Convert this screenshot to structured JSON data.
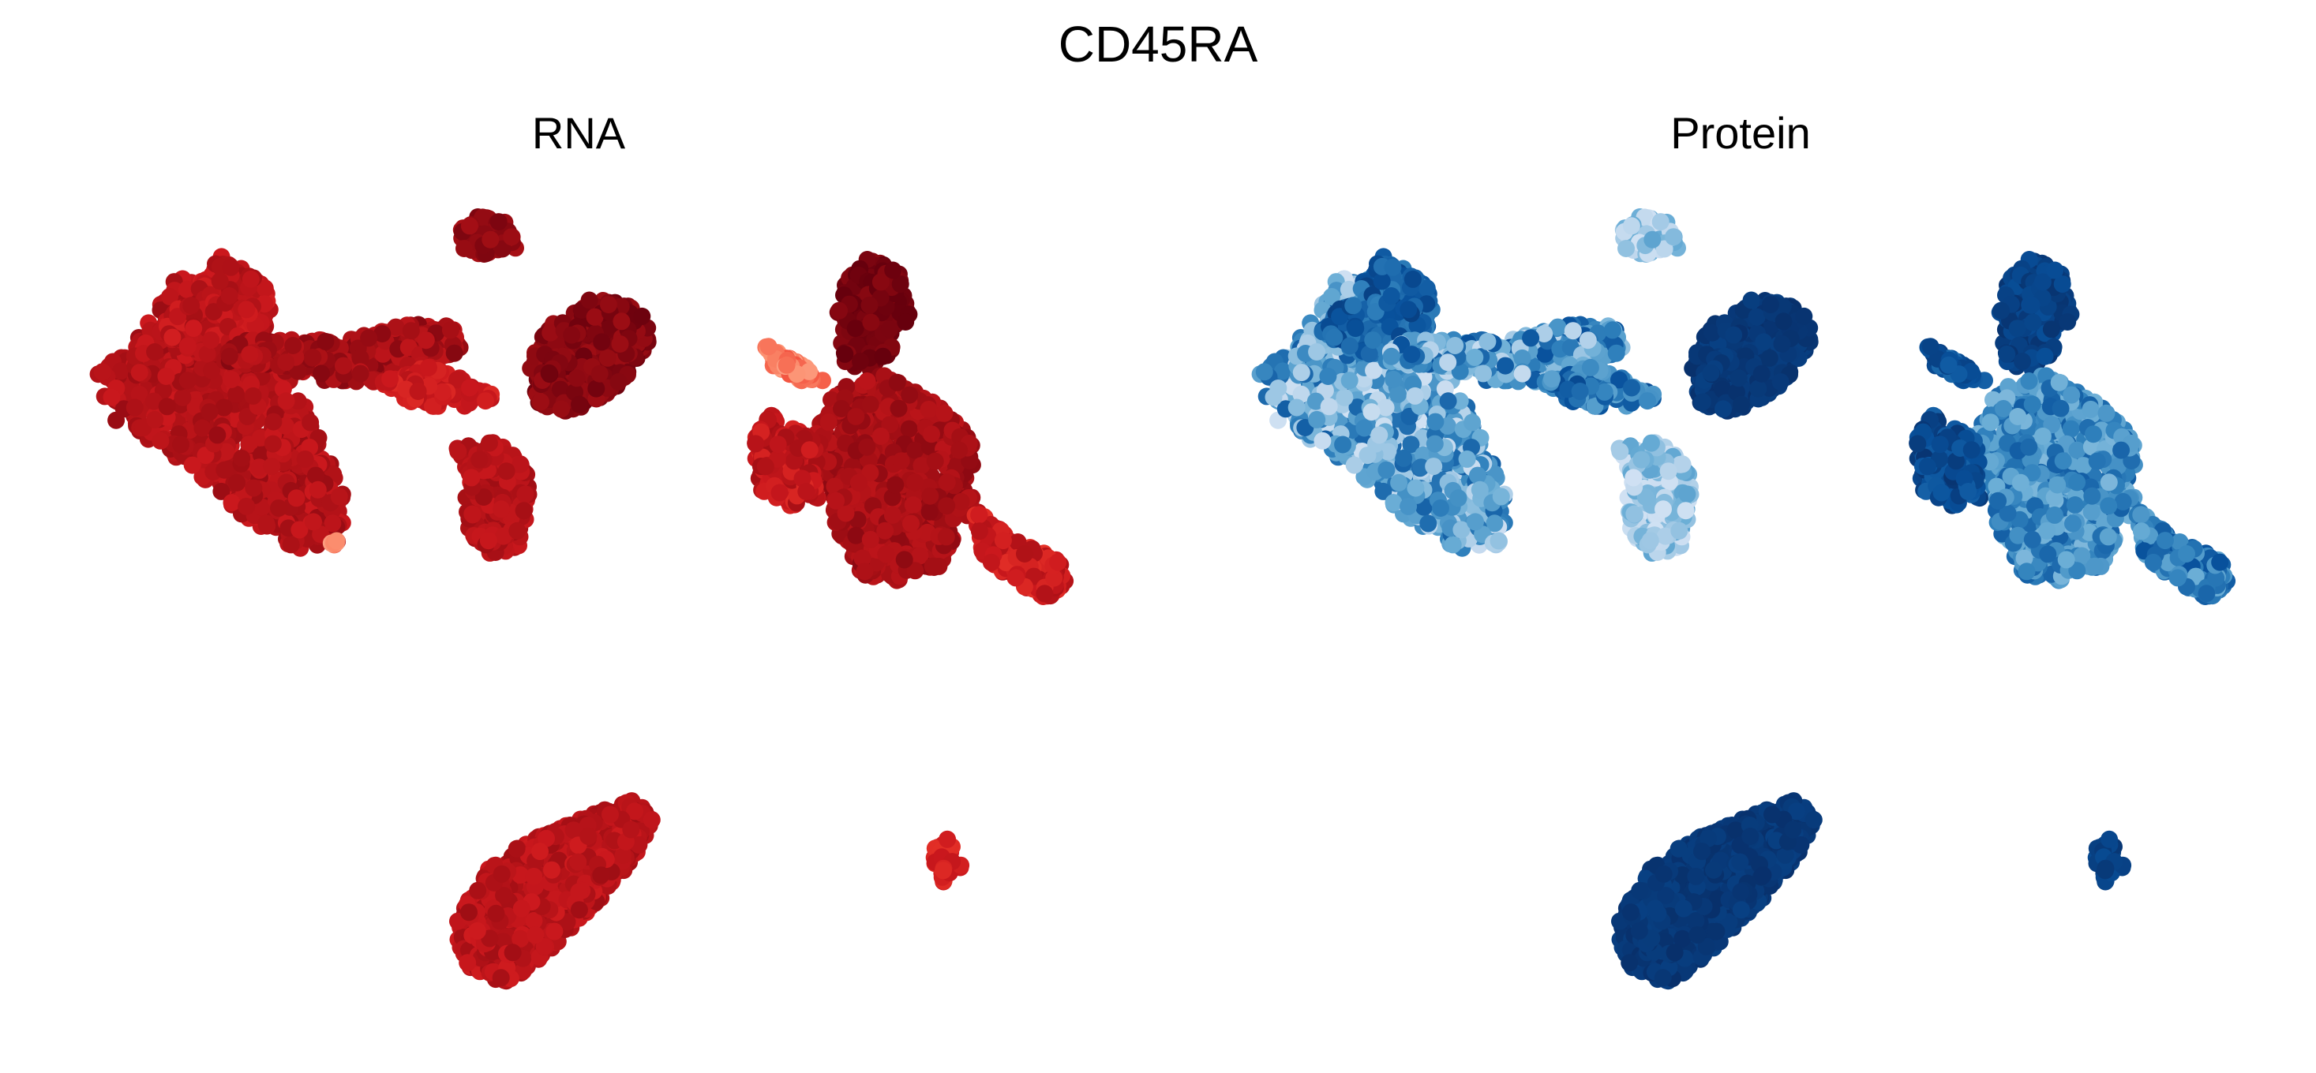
{
  "figure": {
    "title": "CD45RA"
  },
  "chart_data": [
    {
      "type": "scatter",
      "title": "RNA",
      "xlabel": "",
      "ylabel": "",
      "axes_visible": false,
      "grid": false,
      "colormap": "Reds",
      "colormap_stops": [
        "#fee0d2",
        "#fc9272",
        "#ef3b2c",
        "#cb181d",
        "#a50f15",
        "#67000d"
      ],
      "color_by": "CD45RA RNA expression",
      "xlim": [
        0,
        100
      ],
      "ylim": [
        0,
        100
      ],
      "clusters": [
        {
          "id": "c1",
          "shape": [
            [
              3,
              78
            ],
            [
              5,
              72
            ],
            [
              12,
              67
            ],
            [
              17,
              61
            ],
            [
              22,
              57
            ],
            [
              26,
              57
            ],
            [
              27,
              63
            ],
            [
              24,
              71
            ],
            [
              21,
              79
            ],
            [
              17,
              84
            ],
            [
              14,
              88
            ],
            [
              11,
              90
            ],
            [
              9,
              86
            ],
            [
              7,
              82
            ]
          ],
          "level": 0.72,
          "spread": 0.12
        },
        {
          "id": "c2",
          "shape": [
            [
              9,
              83
            ],
            [
              12,
              88
            ],
            [
              15,
              92
            ],
            [
              19,
              89
            ],
            [
              20,
              84
            ],
            [
              17,
              80
            ],
            [
              13,
              80
            ]
          ],
          "level": 0.68,
          "spread": 0.12
        },
        {
          "id": "c3",
          "shape": [
            [
              15,
              79
            ],
            [
              20,
              79
            ],
            [
              25,
              77
            ],
            [
              30,
              77
            ],
            [
              35,
              79
            ],
            [
              38,
              81
            ],
            [
              37,
              84
            ],
            [
              32,
              84
            ],
            [
              27,
              82
            ],
            [
              21,
              82
            ],
            [
              16,
              82
            ]
          ],
          "level": 0.78,
          "spread": 0.12
        },
        {
          "id": "c4",
          "shape": [
            [
              30,
              77
            ],
            [
              35,
              79
            ],
            [
              40,
              76
            ],
            [
              41,
              75
            ],
            [
              38,
              74
            ],
            [
              33,
              74
            ]
          ],
          "level": 0.6,
          "spread": 0.1
        },
        {
          "id": "c5",
          "shape": [
            [
              37,
              95
            ],
            [
              39,
              97
            ],
            [
              42,
              96
            ],
            [
              43,
              93
            ],
            [
              40,
              92
            ],
            [
              38,
              92
            ]
          ],
          "level": 0.85,
          "spread": 0.08
        },
        {
          "id": "c6",
          "shape": [
            [
              44,
              79
            ],
            [
              46,
              84
            ],
            [
              50,
              87
            ],
            [
              54,
              86
            ],
            [
              56,
              83
            ],
            [
              53,
              77
            ],
            [
              49,
              73
            ],
            [
              45,
              74
            ]
          ],
          "level": 0.9,
          "spread": 0.08
        },
        {
          "id": "c7",
          "shape": [
            [
              37,
              69
            ],
            [
              41,
              70
            ],
            [
              44,
              67
            ],
            [
              44,
              62
            ],
            [
              43,
              57
            ],
            [
              40,
              56
            ],
            [
              38,
              60
            ],
            [
              38,
              65
            ]
          ],
          "level": 0.72,
          "spread": 0.1
        },
        {
          "id": "c8",
          "shape": [
            [
              25,
              58
            ],
            [
              26,
              58
            ],
            [
              26,
              57
            ]
          ],
          "level": 0.2,
          "spread": 0.05
        },
        {
          "id": "c9",
          "shape": [
            [
              73,
              84
            ],
            [
              74,
              89
            ],
            [
              76,
              92
            ],
            [
              79,
              90
            ],
            [
              80,
              85
            ],
            [
              78,
              80
            ],
            [
              77,
              78
            ],
            [
              74,
              79
            ]
          ],
          "level": 0.95,
          "spread": 0.06
        },
        {
          "id": "c10",
          "shape": [
            [
              73,
              76
            ],
            [
              78,
              78
            ],
            [
              83,
              74
            ],
            [
              86,
              70
            ],
            [
              86,
              62
            ],
            [
              83,
              55
            ],
            [
              79,
              53
            ],
            [
              75,
              54
            ],
            [
              73,
              60
            ],
            [
              72,
              66
            ],
            [
              71,
              71
            ]
          ],
          "level": 0.78,
          "spread": 0.1
        },
        {
          "id": "c11",
          "shape": [
            [
              65,
              71
            ],
            [
              67,
              73
            ],
            [
              71,
              70
            ],
            [
              72,
              63
            ],
            [
              69,
              62
            ],
            [
              66,
              64
            ]
          ],
          "level": 0.65,
          "spread": 0.15
        },
        {
          "id": "c12",
          "shape": [
            [
              86,
              62
            ],
            [
              90,
              58
            ],
            [
              94,
              56
            ],
            [
              95,
              53
            ],
            [
              93,
              51
            ],
            [
              90,
              53
            ],
            [
              87,
              56
            ]
          ],
          "level": 0.6,
          "spread": 0.15
        },
        {
          "id": "c13",
          "shape": [
            [
              66,
              82
            ],
            [
              70,
              79
            ],
            [
              72,
              77
            ],
            [
              70,
              77
            ],
            [
              67,
              79
            ]
          ],
          "level": 0.25,
          "spread": 0.1
        },
        {
          "id": "c14",
          "shape": [
            [
              37,
              12
            ],
            [
              40,
              19
            ],
            [
              44,
              22
            ],
            [
              49,
              25
            ],
            [
              54,
              27
            ],
            [
              56,
              25
            ],
            [
              54,
              20
            ],
            [
              50,
              14
            ],
            [
              46,
              9
            ],
            [
              42,
              5
            ],
            [
              38,
              7
            ]
          ],
          "level": 0.7,
          "spread": 0.12
        },
        {
          "id": "c15",
          "shape": [
            [
              82,
              21
            ],
            [
              84,
              23
            ],
            [
              85,
              19
            ],
            [
              83,
              17
            ]
          ],
          "level": 0.55,
          "spread": 0.08
        }
      ]
    },
    {
      "type": "scatter",
      "title": "Protein",
      "xlabel": "",
      "ylabel": "",
      "axes_visible": false,
      "grid": false,
      "colormap": "Blues",
      "colormap_stops": [
        "#eff3ff",
        "#c6dbef",
        "#6baed6",
        "#3182bd",
        "#08519c",
        "#08306b"
      ],
      "color_by": "CD45RA protein expression",
      "xlim": [
        0,
        100
      ],
      "ylim": [
        0,
        100
      ],
      "clusters": [
        {
          "id": "c1",
          "shape": [
            [
              3,
              78
            ],
            [
              5,
              72
            ],
            [
              12,
              67
            ],
            [
              17,
              61
            ],
            [
              22,
              57
            ],
            [
              26,
              57
            ],
            [
              27,
              63
            ],
            [
              24,
              71
            ],
            [
              21,
              79
            ],
            [
              17,
              84
            ],
            [
              14,
              88
            ],
            [
              11,
              90
            ],
            [
              9,
              86
            ],
            [
              7,
              82
            ]
          ],
          "level": 0.45,
          "spread": 0.3
        },
        {
          "id": "c2",
          "shape": [
            [
              9,
              83
            ],
            [
              12,
              88
            ],
            [
              15,
              92
            ],
            [
              19,
              89
            ],
            [
              20,
              84
            ],
            [
              17,
              80
            ],
            [
              13,
              80
            ]
          ],
          "level": 0.75,
          "spread": 0.15
        },
        {
          "id": "c3",
          "shape": [
            [
              15,
              79
            ],
            [
              20,
              79
            ],
            [
              25,
              77
            ],
            [
              30,
              77
            ],
            [
              35,
              79
            ],
            [
              38,
              81
            ],
            [
              37,
              84
            ],
            [
              32,
              84
            ],
            [
              27,
              82
            ],
            [
              21,
              82
            ],
            [
              16,
              82
            ]
          ],
          "level": 0.5,
          "spread": 0.3
        },
        {
          "id": "c4",
          "shape": [
            [
              30,
              77
            ],
            [
              35,
              79
            ],
            [
              40,
              76
            ],
            [
              41,
              75
            ],
            [
              38,
              74
            ],
            [
              33,
              74
            ]
          ],
          "level": 0.65,
          "spread": 0.2
        },
        {
          "id": "c5",
          "shape": [
            [
              37,
              95
            ],
            [
              39,
              97
            ],
            [
              42,
              96
            ],
            [
              43,
              93
            ],
            [
              40,
              92
            ],
            [
              38,
              92
            ]
          ],
          "level": 0.3,
          "spread": 0.15
        },
        {
          "id": "c6",
          "shape": [
            [
              44,
              79
            ],
            [
              46,
              84
            ],
            [
              50,
              87
            ],
            [
              54,
              86
            ],
            [
              56,
              83
            ],
            [
              53,
              77
            ],
            [
              49,
              73
            ],
            [
              45,
              74
            ]
          ],
          "level": 0.95,
          "spread": 0.05
        },
        {
          "id": "c7",
          "shape": [
            [
              37,
              69
            ],
            [
              41,
              70
            ],
            [
              44,
              67
            ],
            [
              44,
              62
            ],
            [
              43,
              57
            ],
            [
              40,
              56
            ],
            [
              38,
              60
            ],
            [
              38,
              65
            ]
          ],
          "level": 0.3,
          "spread": 0.15
        },
        {
          "id": "c8",
          "shape": [
            [
              25,
              58
            ],
            [
              26,
              58
            ],
            [
              26,
              57
            ]
          ],
          "level": 0.3,
          "spread": 0.05
        },
        {
          "id": "c9",
          "shape": [
            [
              73,
              84
            ],
            [
              74,
              89
            ],
            [
              76,
              92
            ],
            [
              79,
              90
            ],
            [
              80,
              85
            ],
            [
              78,
              80
            ],
            [
              77,
              78
            ],
            [
              74,
              79
            ]
          ],
          "level": 0.9,
          "spread": 0.08
        },
        {
          "id": "c10",
          "shape": [
            [
              73,
              76
            ],
            [
              78,
              78
            ],
            [
              83,
              74
            ],
            [
              86,
              70
            ],
            [
              86,
              62
            ],
            [
              83,
              55
            ],
            [
              79,
              53
            ],
            [
              75,
              54
            ],
            [
              73,
              60
            ],
            [
              72,
              66
            ],
            [
              71,
              71
            ]
          ],
          "level": 0.55,
          "spread": 0.2
        },
        {
          "id": "c11",
          "shape": [
            [
              65,
              71
            ],
            [
              67,
              73
            ],
            [
              71,
              70
            ],
            [
              72,
              63
            ],
            [
              69,
              62
            ],
            [
              66,
              64
            ]
          ],
          "level": 0.85,
          "spread": 0.12
        },
        {
          "id": "c12",
          "shape": [
            [
              86,
              62
            ],
            [
              90,
              58
            ],
            [
              94,
              56
            ],
            [
              95,
              53
            ],
            [
              93,
              51
            ],
            [
              90,
              53
            ],
            [
              87,
              56
            ]
          ],
          "level": 0.6,
          "spread": 0.2
        },
        {
          "id": "c13",
          "shape": [
            [
              66,
              82
            ],
            [
              70,
              79
            ],
            [
              72,
              77
            ],
            [
              70,
              77
            ],
            [
              67,
              79
            ]
          ],
          "level": 0.8,
          "spread": 0.12
        },
        {
          "id": "c14",
          "shape": [
            [
              37,
              12
            ],
            [
              40,
              19
            ],
            [
              44,
              22
            ],
            [
              49,
              25
            ],
            [
              54,
              27
            ],
            [
              56,
              25
            ],
            [
              54,
              20
            ],
            [
              50,
              14
            ],
            [
              46,
              9
            ],
            [
              42,
              5
            ],
            [
              38,
              7
            ]
          ],
          "level": 0.95,
          "spread": 0.05
        },
        {
          "id": "c15",
          "shape": [
            [
              82,
              21
            ],
            [
              84,
              23
            ],
            [
              85,
              19
            ],
            [
              83,
              17
            ]
          ],
          "level": 0.9,
          "spread": 0.06
        }
      ]
    }
  ]
}
